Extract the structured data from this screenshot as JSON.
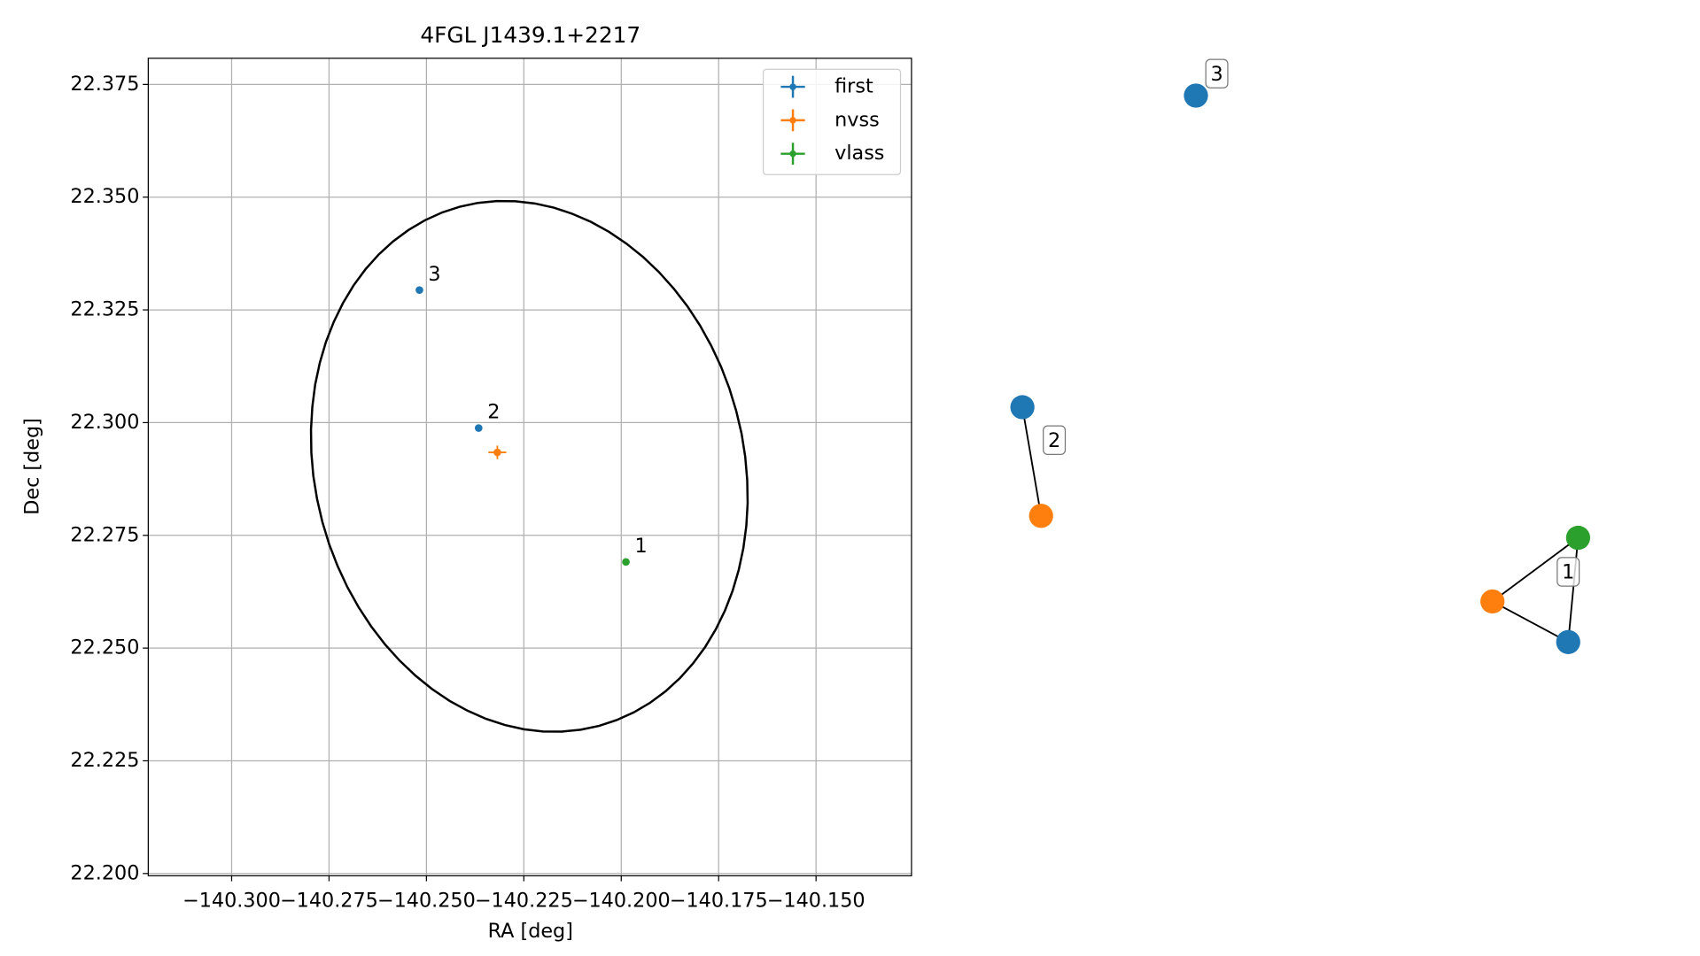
{
  "chart_data": {
    "type": "scatter",
    "title": "4FGL J1439.1+2217",
    "x_label": "RA [deg]",
    "y_label": "Dec [deg]",
    "xlim": [
      -140.3214,
      -140.1255
    ],
    "ylim": [
      22.1995,
      22.3808
    ],
    "xticks": [
      {
        "value": -140.3,
        "label": "−140.300"
      },
      {
        "value": -140.275,
        "label": "−140.275"
      },
      {
        "value": -140.25,
        "label": "−140.250"
      },
      {
        "value": -140.225,
        "label": "−140.225"
      },
      {
        "value": -140.2,
        "label": "−140.200"
      },
      {
        "value": -140.175,
        "label": "−140.175"
      },
      {
        "value": -140.15,
        "label": "−140.150"
      }
    ],
    "yticks": [
      {
        "value": 22.2,
        "label": "22.200"
      },
      22.225,
      {
        "value": 22.25,
        "label": "22.250"
      },
      22.275,
      {
        "value": 22.3,
        "label": "22.300"
      },
      22.325,
      {
        "value": 22.35,
        "label": "22.350"
      },
      22.375
    ],
    "grid": true,
    "legend": "upper right",
    "ellipse": {
      "center": [
        -140.2236,
        22.2903
      ],
      "ra_radius": 0.055,
      "dec_radius": 0.0596,
      "angle": 15,
      "color": "#000000"
    },
    "series": [
      {
        "name": "first",
        "color": "#1f77b4",
        "x": [
          -140.2366,
          -140.2518
        ],
        "values": [
          22.2988,
          22.3294
        ],
        "point_labels": [
          "2",
          "3"
        ]
      },
      {
        "name": "nvss",
        "color": "#ff7f0e",
        "x": [
          -140.2318
        ],
        "values": [
          22.2934
        ],
        "xerr": [
          0.0023
        ],
        "yerr": [
          0.0015
        ]
      },
      {
        "name": "vlass",
        "color": "#2ca02c",
        "x": [
          -140.1988
        ],
        "values": [
          22.2691
        ],
        "point_labels": [
          "1"
        ]
      }
    ]
  }
}
